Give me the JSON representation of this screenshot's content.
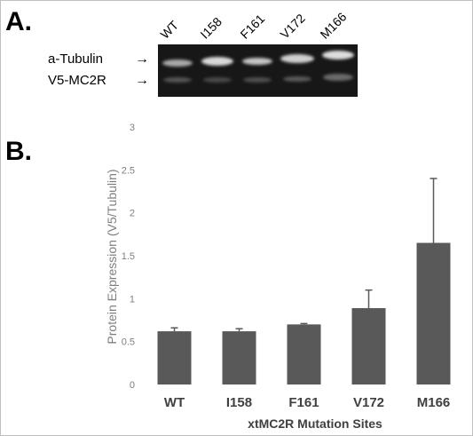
{
  "panel_a": {
    "label": "A.",
    "lanes": [
      "WT",
      "I158",
      "F161",
      "V172",
      "M166"
    ],
    "bands": [
      {
        "label": "a-Tubulin",
        "arrow": "→"
      },
      {
        "label": "V5-MC2R",
        "arrow": "→"
      }
    ]
  },
  "panel_b": {
    "label": "B."
  },
  "chart_data": {
    "type": "bar",
    "categories": [
      "WT",
      "I158",
      "F161",
      "V172",
      "M166"
    ],
    "values": [
      0.62,
      0.62,
      0.7,
      0.89,
      1.65
    ],
    "error_plus": [
      0.04,
      0.03,
      0.01,
      0.21,
      0.75
    ],
    "xlabel": "xtMC2R Mutation  Sites",
    "ylabel": "Protein Expression (V5/Tubulin)",
    "ylim": [
      0,
      3
    ],
    "yticks": [
      0,
      0.5,
      1,
      1.5,
      2,
      2.5,
      3
    ],
    "ytick_labels": [
      "0",
      "0.5",
      "1",
      "1.5",
      "2",
      "2.5",
      "3"
    ],
    "grid": false,
    "bar_color": "#595959",
    "error_color": "#595959"
  }
}
